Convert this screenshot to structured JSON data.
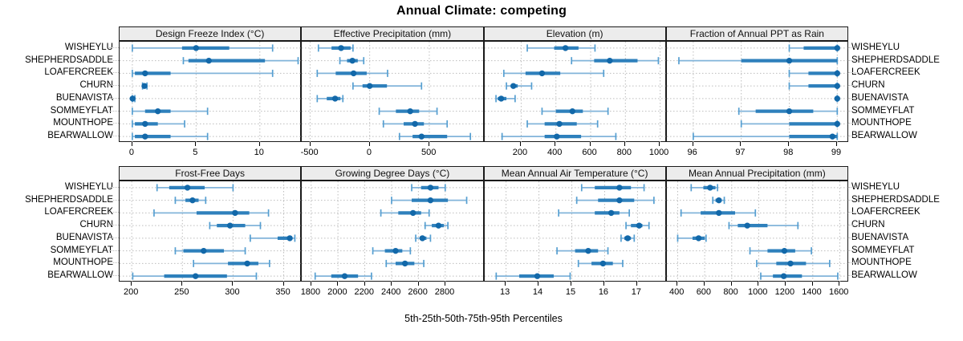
{
  "chart_data": {
    "type": "percentile-dotplot",
    "title": "Annual Climate: competing",
    "xlabel": "5th-25th-50th-75th-95th Percentiles",
    "percentile_labels": [
      "5th",
      "25th",
      "50th",
      "75th",
      "95th"
    ],
    "legend_position": "none",
    "grid": "dotted",
    "sites": [
      "WISHEYLU",
      "SHEPHERDSADDLE",
      "LOAFERCREEK",
      "CHURN",
      "BUENAVISTA",
      "SOMMEYFLAT",
      "MOUNTHOPE",
      "BEARWALLOW"
    ],
    "colors": {
      "median_dot": "#1268a9",
      "iqr_bar": "#2e80bc",
      "whisker": "#82b4da",
      "whisker_cap": "#569fd1",
      "grid": "#bdbdbd",
      "strip_bg": "#ececec",
      "panel_border": "#1a1a1a"
    },
    "panels": [
      {
        "title": "Design Freeze Index (°C)",
        "xlim": [
          -1,
          13.3
        ],
        "ticks": [
          0,
          5,
          10
        ],
        "values": {
          "WISHEYLU": [
            0,
            3.9,
            5,
            7.6,
            11
          ],
          "SHEPHERDSADDLE": [
            4,
            4.4,
            6,
            10.4,
            13
          ],
          "LOAFERCREEK": [
            0,
            0.2,
            1,
            3,
            11
          ],
          "CHURN": [
            0.8,
            0.85,
            0.95,
            1.0,
            1.15
          ],
          "BUENAVISTA": [
            0,
            0,
            0.02,
            0.05,
            0.2
          ],
          "SOMMEYFLAT": [
            0,
            1,
            2,
            3,
            5.9
          ],
          "MOUNTHOPE": [
            0,
            0.2,
            1,
            2,
            4.1
          ],
          "BEARWALLOW": [
            0,
            0.2,
            1,
            3,
            5.9
          ]
        }
      },
      {
        "title": "Effective Precipitation (mm)",
        "xlim": [
          -570,
          960
        ],
        "ticks": [
          -500,
          0,
          500
        ],
        "values": {
          "WISHEYLU": [
            -430,
            -320,
            -240,
            -160,
            -140
          ],
          "SHEPHERDSADDLE": [
            -250,
            -190,
            -145,
            -100,
            -50
          ],
          "LOAFERCREEK": [
            -440,
            -285,
            -135,
            -25,
            150
          ],
          "CHURN": [
            -140,
            -60,
            0,
            145,
            435
          ],
          "BUENAVISTA": [
            -440,
            -360,
            -290,
            -245,
            -225
          ],
          "SOMMEYFLAT": [
            80,
            220,
            340,
            415,
            565
          ],
          "MOUNTHOPE": [
            115,
            285,
            380,
            455,
            650
          ],
          "BEARWALLOW": [
            250,
            360,
            435,
            650,
            845
          ]
        }
      },
      {
        "title": "Elevation (m)",
        "xlim": [
          -10,
          1040
        ],
        "ticks": [
          200,
          400,
          600,
          800,
          1000
        ],
        "values": {
          "WISHEYLU": [
            235,
            390,
            455,
            530,
            625
          ],
          "SHEPHERDSADDLE": [
            490,
            620,
            710,
            870,
            990
          ],
          "LOAFERCREEK": [
            100,
            225,
            320,
            425,
            675
          ],
          "CHURN": [
            115,
            140,
            155,
            180,
            260
          ],
          "BUENAVISTA": [
            55,
            65,
            85,
            115,
            165
          ],
          "SOMMEYFLAT": [
            320,
            400,
            495,
            555,
            700
          ],
          "MOUNTHOPE": [
            235,
            335,
            420,
            520,
            640
          ],
          "BEARWALLOW": [
            90,
            335,
            405,
            545,
            745
          ]
        }
      },
      {
        "title": "Fraction of Annual PPT as Rain",
        "xlim": [
          95.45,
          99.25
        ],
        "ticks": [
          96,
          97,
          98,
          99
        ],
        "values": {
          "WISHEYLU": [
            98,
            98.3,
            99,
            99,
            99
          ],
          "SHEPHERDSADDLE": [
            95.7,
            97,
            98,
            99,
            99
          ],
          "LOAFERCREEK": [
            98,
            98.4,
            99,
            99,
            99
          ],
          "CHURN": [
            98,
            98.4,
            99,
            99,
            99
          ],
          "BUENAVISTA": [
            99,
            99,
            99,
            99,
            99
          ],
          "SOMMEYFLAT": [
            96.95,
            97.3,
            98,
            98.5,
            99
          ],
          "MOUNTHOPE": [
            97,
            98,
            99,
            99,
            99
          ],
          "BEARWALLOW": [
            96,
            98,
            98.9,
            99,
            99
          ]
        }
      },
      {
        "title": "Frost-Free Days",
        "xlim": [
          188,
          368
        ],
        "ticks": [
          200,
          250,
          300,
          350
        ],
        "values": {
          "WISHEYLU": [
            225,
            237,
            255,
            272,
            300
          ],
          "SHEPHERDSADDLE": [
            243,
            253,
            260,
            266,
            273
          ],
          "LOAFERCREEK": [
            222,
            264,
            302,
            316,
            335
          ],
          "CHURN": [
            277,
            284,
            297,
            312,
            327
          ],
          "BUENAVISTA": [
            317,
            344,
            356,
            358,
            361
          ],
          "SOMMEYFLAT": [
            243,
            251,
            271,
            291,
            312
          ],
          "MOUNTHOPE": [
            261,
            295,
            314,
            325,
            336
          ],
          "BEARWALLOW": [
            201,
            232,
            263,
            294,
            323
          ]
        }
      },
      {
        "title": "Growing Degree Days (°C)",
        "xlim": [
          1730,
          3090
        ],
        "ticks": [
          1800,
          2000,
          2200,
          2400,
          2600,
          2800
        ],
        "values": {
          "WISHEYLU": [
            2550,
            2620,
            2690,
            2750,
            2800
          ],
          "SHEPHERDSADDLE": [
            2400,
            2550,
            2690,
            2820,
            2960
          ],
          "LOAFERCREEK": [
            2320,
            2450,
            2560,
            2620,
            2680
          ],
          "CHURN": [
            2650,
            2700,
            2750,
            2790,
            2820
          ],
          "BUENAVISTA": [
            2580,
            2610,
            2630,
            2660,
            2690
          ],
          "SOMMEYFLAT": [
            2260,
            2350,
            2430,
            2480,
            2540
          ],
          "MOUNTHOPE": [
            2360,
            2430,
            2500,
            2570,
            2640
          ],
          "BEARWALLOW": [
            1830,
            1950,
            2050,
            2150,
            2250
          ]
        }
      },
      {
        "title": "Mean Annual Air Temperature (°C)",
        "xlim": [
          12.35,
          17.9
        ],
        "ticks": [
          13,
          14,
          15,
          16,
          17
        ],
        "values": {
          "WISHEYLU": [
            15.3,
            15.7,
            16.45,
            16.8,
            17.2
          ],
          "SHEPHERDSADDLE": [
            15.15,
            15.8,
            16.45,
            16.9,
            17.5
          ],
          "LOAFERCREEK": [
            14.6,
            15.7,
            16.2,
            16.45,
            16.75
          ],
          "CHURN": [
            16.65,
            16.8,
            17.05,
            17.15,
            17.35
          ],
          "BUENAVISTA": [
            16.5,
            16.6,
            16.7,
            16.8,
            16.9
          ],
          "SOMMEYFLAT": [
            14.55,
            15.1,
            15.5,
            15.8,
            16.1
          ],
          "MOUNTHOPE": [
            15.2,
            15.6,
            15.95,
            16.25,
            16.55
          ],
          "BEARWALLOW": [
            12.7,
            13.4,
            13.95,
            14.45,
            14.95
          ]
        }
      },
      {
        "title": "Mean Annual Precipitation (mm)",
        "xlim": [
          320,
          1670
        ],
        "ticks": [
          400,
          600,
          800,
          1000,
          1200,
          1400,
          1600
        ],
        "values": {
          "WISHEYLU": [
            500,
            590,
            640,
            680,
            695
          ],
          "SHEPHERDSADDLE": [
            660,
            680,
            705,
            725,
            745
          ],
          "LOAFERCREEK": [
            425,
            570,
            705,
            825,
            975
          ],
          "CHURN": [
            780,
            845,
            915,
            1065,
            1290
          ],
          "BUENAVISTA": [
            400,
            510,
            555,
            600,
            610
          ],
          "SOMMEYFLAT": [
            935,
            1065,
            1190,
            1270,
            1390
          ],
          "MOUNTHOPE": [
            985,
            1130,
            1235,
            1350,
            1525
          ],
          "BEARWALLOW": [
            1015,
            1105,
            1185,
            1320,
            1585
          ]
        }
      }
    ]
  }
}
